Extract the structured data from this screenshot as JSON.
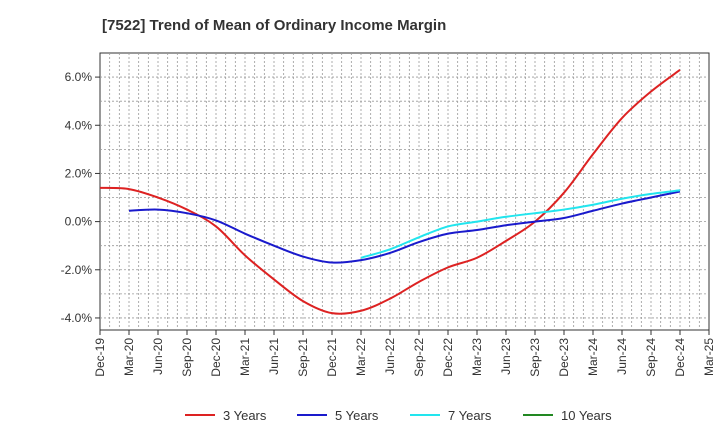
{
  "chart_data": {
    "type": "line",
    "title": "[7522]  Trend of Mean of Ordinary Income Margin",
    "xlabel": "",
    "ylabel": "",
    "x_ticks": [
      "Dec-19",
      "Mar-20",
      "Jun-20",
      "Sep-20",
      "Dec-20",
      "Mar-21",
      "Jun-21",
      "Sep-21",
      "Dec-21",
      "Mar-22",
      "Jun-22",
      "Sep-22",
      "Dec-22",
      "Mar-23",
      "Jun-23",
      "Sep-23",
      "Dec-23",
      "Mar-24",
      "Jun-24",
      "Sep-24",
      "Dec-24",
      "Mar-25"
    ],
    "y_ticks": [
      -4.0,
      -2.0,
      0.0,
      2.0,
      4.0,
      6.0
    ],
    "y_tick_labels": [
      "-4.0%",
      "-2.0%",
      "0.0%",
      "2.0%",
      "4.0%",
      "6.0%"
    ],
    "ylim": [
      -4.5,
      7.0
    ],
    "grid": true,
    "legend_position": "bottom",
    "series": [
      {
        "name": "3 Years",
        "color": "#dd2222",
        "x": [
          "Dec-19",
          "Mar-20",
          "Jun-20",
          "Sep-20",
          "Dec-20",
          "Mar-21",
          "Jun-21",
          "Sep-21",
          "Dec-21",
          "Mar-22",
          "Jun-22",
          "Sep-22",
          "Dec-22",
          "Mar-23",
          "Jun-23",
          "Sep-23",
          "Dec-23",
          "Mar-24",
          "Jun-24",
          "Sep-24",
          "Dec-24"
        ],
        "values": [
          1.4,
          1.35,
          1.0,
          0.5,
          -0.2,
          -1.4,
          -2.4,
          -3.3,
          -3.8,
          -3.7,
          -3.2,
          -2.5,
          -1.9,
          -1.5,
          -0.8,
          0.0,
          1.2,
          2.8,
          4.3,
          5.4,
          6.3
        ]
      },
      {
        "name": "5 Years",
        "color": "#1a1acc",
        "x": [
          "Mar-20",
          "Jun-20",
          "Sep-20",
          "Dec-20",
          "Mar-21",
          "Jun-21",
          "Sep-21",
          "Dec-21",
          "Mar-22",
          "Jun-22",
          "Sep-22",
          "Dec-22",
          "Mar-23",
          "Jun-23",
          "Sep-23",
          "Dec-23",
          "Mar-24",
          "Jun-24",
          "Sep-24",
          "Dec-24"
        ],
        "values": [
          0.45,
          0.5,
          0.35,
          0.05,
          -0.5,
          -1.0,
          -1.45,
          -1.7,
          -1.6,
          -1.3,
          -0.85,
          -0.5,
          -0.35,
          -0.15,
          0.0,
          0.15,
          0.45,
          0.75,
          1.0,
          1.25
        ]
      },
      {
        "name": "7 Years",
        "color": "#22e5ee",
        "x": [
          "Mar-22",
          "Jun-22",
          "Sep-22",
          "Dec-22",
          "Mar-23",
          "Jun-23",
          "Sep-23",
          "Dec-23",
          "Mar-24",
          "Jun-24",
          "Sep-24",
          "Dec-24"
        ],
        "values": [
          -1.5,
          -1.15,
          -0.65,
          -0.2,
          0.0,
          0.2,
          0.35,
          0.5,
          0.7,
          0.95,
          1.15,
          1.3
        ]
      },
      {
        "name": "10 Years",
        "color": "#228822",
        "x": [],
        "values": []
      }
    ]
  }
}
